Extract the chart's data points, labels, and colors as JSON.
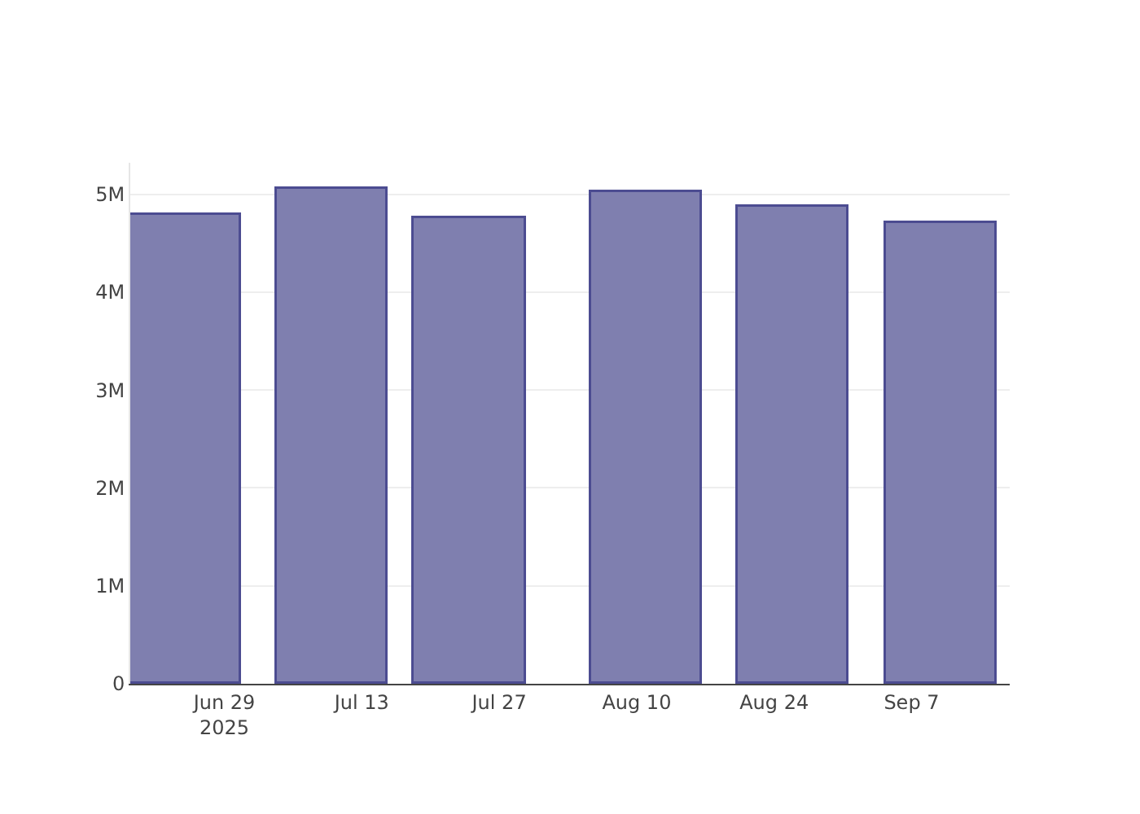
{
  "chart_data": {
    "type": "bar",
    "x": [
      "2025-06-25",
      "2025-07-10",
      "2025-07-24",
      "2025-08-11",
      "2025-08-26",
      "2025-09-10"
    ],
    "values": [
      4780000,
      5050000,
      4750000,
      5020000,
      4870000,
      4700000
    ],
    "color": "#7f7faf",
    "xlim": [
      "2025-06-19T10:00",
      "2025-09-17"
    ],
    "xticks": [
      {
        "value": "2025-06-29",
        "label": "Jun 29\n2025"
      },
      {
        "value": "2025-07-13",
        "label": "Jul 13"
      },
      {
        "value": "2025-07-27",
        "label": "Jul 27"
      },
      {
        "value": "2025-08-10",
        "label": "Aug 10"
      },
      {
        "value": "2025-08-24",
        "label": "Aug 24"
      },
      {
        "value": "2025-09-07",
        "label": "Sep 7"
      }
    ],
    "yticks": [
      {
        "value": 0,
        "label": "0"
      },
      {
        "value": 1000000,
        "label": "1M"
      },
      {
        "value": 2000000,
        "label": "2M"
      },
      {
        "value": 3000000,
        "label": "3M"
      },
      {
        "value": 4000000,
        "label": "4M"
      },
      {
        "value": 5000000,
        "label": "5M"
      }
    ],
    "ylim": [
      0,
      5320000
    ],
    "grid": "y"
  }
}
